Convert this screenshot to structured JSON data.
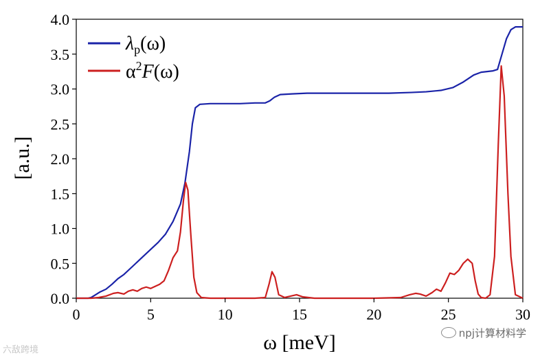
{
  "chart_data": {
    "type": "line",
    "xlabel": "ω [meV]",
    "ylabel": "[a.u.]",
    "xlim": [
      0,
      30
    ],
    "ylim": [
      0,
      4.0
    ],
    "xticks": [
      0,
      5,
      10,
      15,
      20,
      25,
      30
    ],
    "yticks": [
      "0.0",
      "0.5",
      "1.0",
      "1.5",
      "2.0",
      "2.5",
      "3.0",
      "3.5",
      "4.0"
    ],
    "grid": false,
    "legend": "top-left",
    "series": [
      {
        "name": "λp(ω)",
        "color": "#1a23a8",
        "x": [
          0,
          0.8,
          1.0,
          1.3,
          1.6,
          2.0,
          2.4,
          2.8,
          3.2,
          3.6,
          4.0,
          4.5,
          5.0,
          5.5,
          6.0,
          6.5,
          7.0,
          7.3,
          7.6,
          7.8,
          8.0,
          8.3,
          9,
          10,
          11,
          12,
          12.7,
          13.0,
          13.3,
          13.7,
          14.5,
          15.5,
          17,
          19,
          21,
          22.5,
          23.5,
          24.5,
          25.3,
          26,
          26.7,
          27.2,
          27.6,
          28.0,
          28.3,
          28.6,
          28.9,
          29.2,
          29.5,
          30
        ],
        "y": [
          0,
          0,
          0.01,
          0.05,
          0.09,
          0.13,
          0.2,
          0.28,
          0.34,
          0.42,
          0.5,
          0.6,
          0.7,
          0.8,
          0.92,
          1.1,
          1.35,
          1.65,
          2.1,
          2.5,
          2.73,
          2.78,
          2.79,
          2.79,
          2.79,
          2.8,
          2.8,
          2.83,
          2.88,
          2.92,
          2.93,
          2.94,
          2.94,
          2.94,
          2.94,
          2.95,
          2.96,
          2.98,
          3.02,
          3.1,
          3.2,
          3.24,
          3.25,
          3.26,
          3.28,
          3.5,
          3.72,
          3.85,
          3.89,
          3.89
        ]
      },
      {
        "name": "α²F(ω)",
        "color": "#cc1f1f",
        "x": [
          0,
          1.0,
          1.5,
          2.0,
          2.5,
          2.8,
          3.2,
          3.5,
          3.8,
          4.1,
          4.4,
          4.7,
          5.0,
          5.3,
          5.6,
          5.9,
          6.2,
          6.5,
          6.8,
          7.0,
          7.2,
          7.35,
          7.5,
          7.7,
          7.9,
          8.1,
          8.4,
          9,
          10,
          12,
          12.7,
          12.95,
          13.15,
          13.35,
          13.6,
          14.0,
          14.4,
          14.8,
          15.2,
          16,
          20,
          21.8,
          22.4,
          22.8,
          23.1,
          23.5,
          23.9,
          24.2,
          24.5,
          24.8,
          25.1,
          25.4,
          25.7,
          26.0,
          26.3,
          26.6,
          26.8,
          27.0,
          27.2,
          27.5,
          27.8,
          28.1,
          28.35,
          28.55,
          28.75,
          29.0,
          29.2,
          29.5,
          30
        ],
        "y": [
          0,
          0,
          0.01,
          0.03,
          0.07,
          0.08,
          0.06,
          0.1,
          0.12,
          0.1,
          0.14,
          0.16,
          0.14,
          0.17,
          0.2,
          0.25,
          0.4,
          0.58,
          0.68,
          0.95,
          1.4,
          1.66,
          1.55,
          0.9,
          0.3,
          0.08,
          0.01,
          0,
          0,
          0,
          0.01,
          0.2,
          0.38,
          0.3,
          0.05,
          0.01,
          0.03,
          0.05,
          0.02,
          0,
          0,
          0.01,
          0.05,
          0.07,
          0.06,
          0.03,
          0.08,
          0.13,
          0.1,
          0.22,
          0.36,
          0.34,
          0.4,
          0.5,
          0.56,
          0.5,
          0.25,
          0.06,
          0.01,
          0,
          0.05,
          0.6,
          2.2,
          3.33,
          2.9,
          1.5,
          0.6,
          0.05,
          0
        ]
      }
    ]
  },
  "legend": {
    "lambda_symbol": "λ",
    "lambda_sub": "p",
    "lambda_rest": "(ω)",
    "alpha_symbol": "α",
    "alpha_sup": "2",
    "alpha_F": "F",
    "alpha_rest": "(ω)"
  },
  "watermarks": {
    "left": "六敌跨境",
    "right": "npj计算材料学"
  }
}
